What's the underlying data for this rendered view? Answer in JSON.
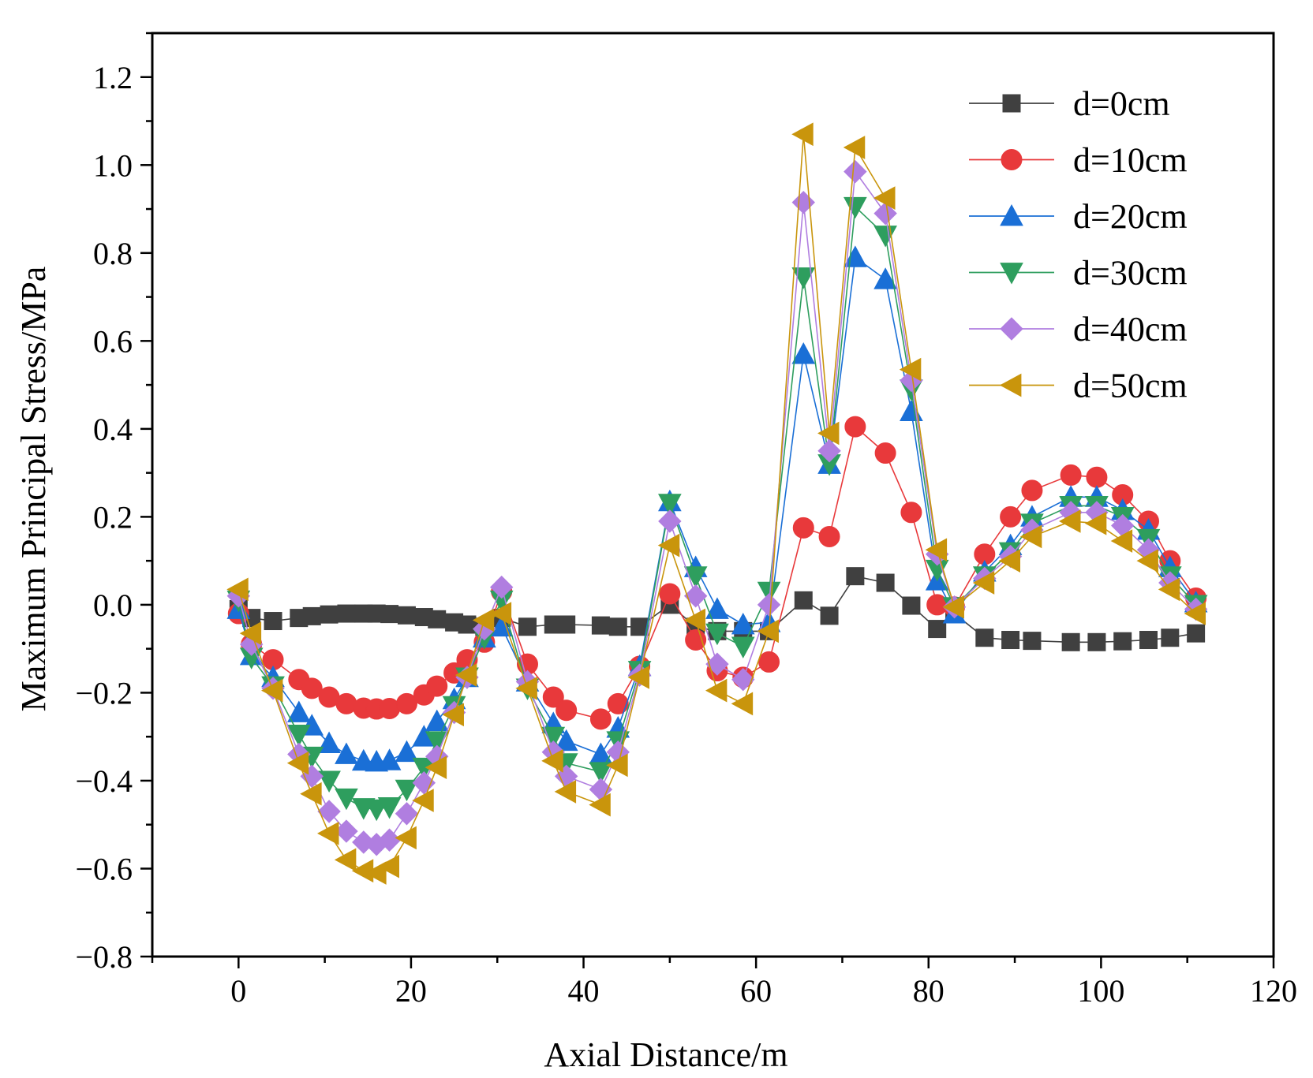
{
  "chart_data": {
    "type": "line",
    "title": "",
    "xlabel": "Axial Distance/m",
    "ylabel": "Maximum Principal Stress/MPa",
    "xlim": [
      -10,
      120
    ],
    "ylim": [
      -0.8,
      1.3
    ],
    "xticks": [
      0,
      20,
      40,
      60,
      80,
      100,
      120
    ],
    "yticks": [
      -0.8,
      -0.6,
      -0.4,
      -0.2,
      0.0,
      0.2,
      0.4,
      0.6,
      0.8,
      1.0,
      1.2
    ],
    "xtick_labels": [
      "0",
      "20",
      "40",
      "60",
      "80",
      "100",
      "120"
    ],
    "ytick_labels": [
      "−0.8",
      "−0.6",
      "−0.4",
      "−0.2",
      "0.0",
      "0.2",
      "0.4",
      "0.6",
      "0.8",
      "1.0",
      "1.2"
    ],
    "legend_position": "top-right",
    "x": [
      0,
      1.5,
      4,
      7,
      8.5,
      10.5,
      12.5,
      14.5,
      16,
      17.5,
      19.5,
      21.5,
      23,
      25,
      26.5,
      28.5,
      30.5,
      33.5,
      36.5,
      38,
      42,
      44,
      46.5,
      50,
      53,
      55.5,
      58.5,
      61.5,
      65.5,
      68.5,
      71.5,
      75,
      78,
      81,
      83,
      86.5,
      89.5,
      92,
      96.5,
      99.5,
      102.5,
      105.5,
      108,
      111
    ],
    "series": [
      {
        "name": "d=0cm",
        "color": "#404040",
        "marker": "square",
        "values": [
          -0.01,
          -0.03,
          -0.037,
          -0.03,
          -0.026,
          -0.022,
          -0.02,
          -0.02,
          -0.02,
          -0.021,
          -0.024,
          -0.028,
          -0.033,
          -0.04,
          -0.045,
          -0.05,
          -0.03,
          -0.05,
          -0.045,
          -0.045,
          -0.047,
          -0.05,
          -0.05,
          0.0,
          -0.05,
          -0.06,
          -0.06,
          -0.06,
          0.01,
          -0.025,
          0.065,
          0.05,
          -0.002,
          -0.055,
          -0.02,
          -0.075,
          -0.08,
          -0.082,
          -0.085,
          -0.085,
          -0.083,
          -0.08,
          -0.075,
          -0.065
        ]
      },
      {
        "name": "d=10cm",
        "color": "#e8393b",
        "marker": "circle",
        "values": [
          -0.02,
          -0.09,
          -0.125,
          -0.17,
          -0.19,
          -0.21,
          -0.225,
          -0.235,
          -0.237,
          -0.236,
          -0.225,
          -0.205,
          -0.185,
          -0.155,
          -0.125,
          -0.085,
          0.03,
          -0.135,
          -0.21,
          -0.24,
          -0.26,
          -0.225,
          -0.14,
          0.025,
          -0.08,
          -0.15,
          -0.165,
          -0.13,
          0.175,
          0.155,
          0.405,
          0.345,
          0.21,
          0.0,
          -0.005,
          0.115,
          0.2,
          0.26,
          0.295,
          0.29,
          0.25,
          0.19,
          0.1,
          0.015
        ]
      },
      {
        "name": "d=20cm",
        "color": "#1a6fd6",
        "marker": "triangle-up",
        "values": [
          -0.01,
          -0.115,
          -0.165,
          -0.245,
          -0.275,
          -0.315,
          -0.34,
          -0.355,
          -0.357,
          -0.354,
          -0.335,
          -0.3,
          -0.265,
          -0.215,
          -0.165,
          -0.075,
          -0.05,
          -0.175,
          -0.27,
          -0.31,
          -0.34,
          -0.28,
          -0.14,
          0.235,
          0.085,
          -0.01,
          -0.045,
          -0.04,
          0.57,
          0.32,
          0.79,
          0.74,
          0.44,
          0.055,
          -0.02,
          0.075,
          0.135,
          0.2,
          0.245,
          0.245,
          0.215,
          0.17,
          0.085,
          0.005
        ]
      },
      {
        "name": "d=30cm",
        "color": "#2e9e5e",
        "marker": "triangle-down",
        "values": [
          0.01,
          -0.12,
          -0.185,
          -0.295,
          -0.345,
          -0.4,
          -0.44,
          -0.462,
          -0.465,
          -0.46,
          -0.42,
          -0.37,
          -0.31,
          -0.23,
          -0.165,
          -0.075,
          0.01,
          -0.19,
          -0.3,
          -0.36,
          -0.38,
          -0.31,
          -0.15,
          0.23,
          0.065,
          -0.065,
          -0.095,
          0.03,
          0.745,
          0.32,
          0.905,
          0.84,
          0.49,
          0.08,
          -0.005,
          0.065,
          0.12,
          0.185,
          0.225,
          0.225,
          0.2,
          0.15,
          0.065,
          0.0
        ]
      },
      {
        "name": "d=40cm",
        "color": "#b07ee0",
        "marker": "diamond",
        "values": [
          0.02,
          -0.09,
          -0.19,
          -0.34,
          -0.39,
          -0.47,
          -0.515,
          -0.54,
          -0.545,
          -0.535,
          -0.475,
          -0.405,
          -0.345,
          -0.245,
          -0.165,
          -0.055,
          0.04,
          -0.175,
          -0.335,
          -0.39,
          -0.42,
          -0.335,
          -0.16,
          0.19,
          0.02,
          -0.135,
          -0.17,
          0.0,
          0.915,
          0.35,
          0.985,
          0.89,
          0.51,
          0.115,
          -0.005,
          0.06,
          0.11,
          0.17,
          0.21,
          0.21,
          0.18,
          0.125,
          0.05,
          -0.01
        ]
      },
      {
        "name": "d=50cm",
        "color": "#c9950c",
        "marker": "triangle-left",
        "values": [
          0.035,
          -0.065,
          -0.195,
          -0.36,
          -0.43,
          -0.52,
          -0.58,
          -0.605,
          -0.61,
          -0.595,
          -0.53,
          -0.445,
          -0.37,
          -0.25,
          -0.16,
          -0.035,
          -0.02,
          -0.19,
          -0.355,
          -0.425,
          -0.455,
          -0.365,
          -0.165,
          0.135,
          -0.035,
          -0.195,
          -0.225,
          -0.06,
          1.07,
          0.39,
          1.04,
          0.925,
          0.535,
          0.125,
          -0.005,
          0.05,
          0.1,
          0.155,
          0.19,
          0.185,
          0.145,
          0.1,
          0.035,
          -0.02
        ]
      }
    ]
  }
}
